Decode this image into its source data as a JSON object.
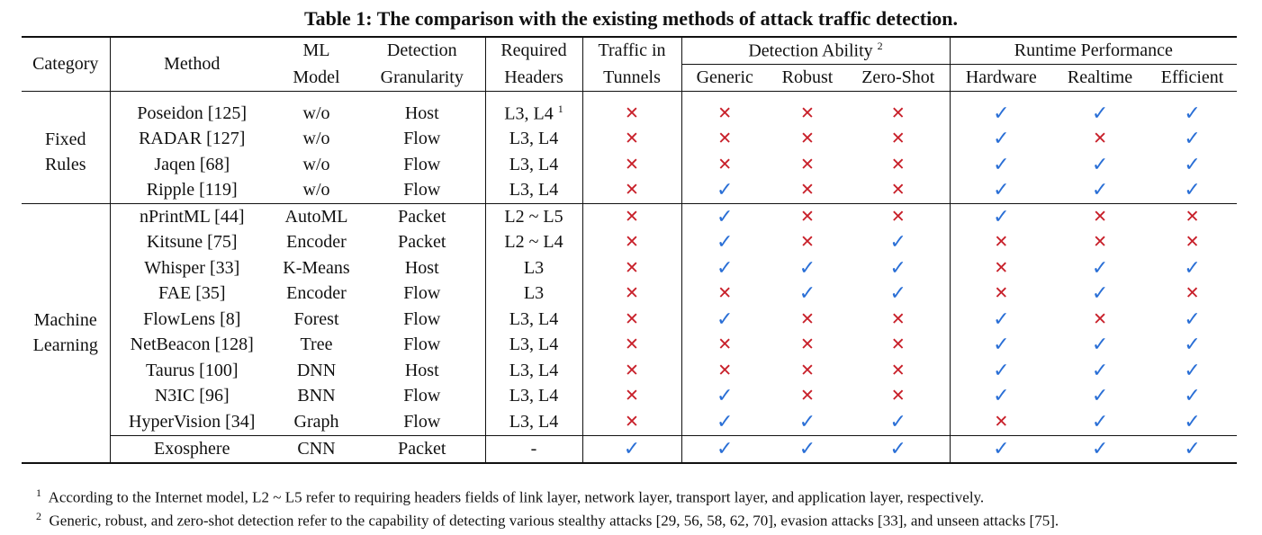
{
  "caption": "Table 1: The comparison with the existing methods of attack traffic detection.",
  "headers": {
    "category": "Category",
    "method": "Method",
    "ml_model_1": "ML",
    "ml_model_2": "Model",
    "granularity_1": "Detection",
    "granularity_2": "Granularity",
    "required_1": "Required",
    "required_2": "Headers",
    "tunnels_1": "Traffic in",
    "tunnels_2": "Tunnels",
    "detection_ability": "Detection Ability",
    "detection_ability_sup": "2",
    "generic": "Generic",
    "robust": "Robust",
    "zero_shot": "Zero-Shot",
    "runtime_performance": "Runtime Performance",
    "hardware": "Hardware",
    "realtime": "Realtime",
    "efficient": "Efficient"
  },
  "categories": {
    "fixed_1": "Fixed",
    "fixed_2": "Rules",
    "ml_1": "Machine",
    "ml_2": "Learning"
  },
  "symbols": {
    "check": "✓",
    "cross": "✕"
  },
  "rows": [
    {
      "method": "Poseidon [125]",
      "model": "w/o",
      "gran": "Host",
      "headers": "L3, L4",
      "headers_sup": "1",
      "marks": [
        "x",
        "x",
        "x",
        "x",
        "c",
        "c",
        "c"
      ]
    },
    {
      "method": "RADAR [127]",
      "model": "w/o",
      "gran": "Flow",
      "headers": "L3, L4",
      "headers_sup": "",
      "marks": [
        "x",
        "x",
        "x",
        "x",
        "c",
        "x",
        "c"
      ]
    },
    {
      "method": "Jaqen [68]",
      "model": "w/o",
      "gran": "Flow",
      "headers": "L3, L4",
      "headers_sup": "",
      "marks": [
        "x",
        "x",
        "x",
        "x",
        "c",
        "c",
        "c"
      ]
    },
    {
      "method": "Ripple [119]",
      "model": "w/o",
      "gran": "Flow",
      "headers": "L3, L4",
      "headers_sup": "",
      "marks": [
        "x",
        "c",
        "x",
        "x",
        "c",
        "c",
        "c"
      ]
    },
    {
      "method": "nPrintML [44]",
      "model": "AutoML",
      "gran": "Packet",
      "headers": "L2 ~ L5",
      "headers_sup": "",
      "marks": [
        "x",
        "c",
        "x",
        "x",
        "c",
        "x",
        "x"
      ]
    },
    {
      "method": "Kitsune [75]",
      "model": "Encoder",
      "gran": "Packet",
      "headers": "L2 ~ L4",
      "headers_sup": "",
      "marks": [
        "x",
        "c",
        "x",
        "c",
        "x",
        "x",
        "x"
      ]
    },
    {
      "method": "Whisper [33]",
      "model": "K-Means",
      "gran": "Host",
      "headers": "L3",
      "headers_sup": "",
      "marks": [
        "x",
        "c",
        "c",
        "c",
        "x",
        "c",
        "c"
      ]
    },
    {
      "method": "FAE [35]",
      "model": "Encoder",
      "gran": "Flow",
      "headers": "L3",
      "headers_sup": "",
      "marks": [
        "x",
        "x",
        "c",
        "c",
        "x",
        "c",
        "x"
      ]
    },
    {
      "method": "FlowLens [8]",
      "model": "Forest",
      "gran": "Flow",
      "headers": "L3, L4",
      "headers_sup": "",
      "marks": [
        "x",
        "c",
        "x",
        "x",
        "c",
        "x",
        "c"
      ]
    },
    {
      "method": "NetBeacon [128]",
      "model": "Tree",
      "gran": "Flow",
      "headers": "L3, L4",
      "headers_sup": "",
      "marks": [
        "x",
        "x",
        "x",
        "x",
        "c",
        "c",
        "c"
      ]
    },
    {
      "method": "Taurus [100]",
      "model": "DNN",
      "gran": "Host",
      "headers": "L3, L4",
      "headers_sup": "",
      "marks": [
        "x",
        "x",
        "x",
        "x",
        "c",
        "c",
        "c"
      ]
    },
    {
      "method": "N3IC [96]",
      "model": "BNN",
      "gran": "Flow",
      "headers": "L3, L4",
      "headers_sup": "",
      "marks": [
        "x",
        "c",
        "x",
        "x",
        "c",
        "c",
        "c"
      ]
    },
    {
      "method": "HyperVision [34]",
      "model": "Graph",
      "gran": "Flow",
      "headers": "L3, L4",
      "headers_sup": "",
      "marks": [
        "x",
        "c",
        "c",
        "c",
        "x",
        "c",
        "c"
      ]
    },
    {
      "method": "Exosphere",
      "model": "CNN",
      "gran": "Packet",
      "headers": "-",
      "headers_sup": "",
      "marks": [
        "c",
        "c",
        "c",
        "c",
        "c",
        "c",
        "c"
      ]
    }
  ],
  "footnotes": [
    {
      "num": "1",
      "text": "According to the Internet model, L2 ~ L5 refer to requiring headers fields of link layer, network layer, transport layer, and application layer, respectively."
    },
    {
      "num": "2",
      "text": "Generic, robust, and zero-shot detection refer to the capability of detecting various stealthy attacks [29, 56, 58, 62, 70], evasion attacks [33], and unseen attacks [75]."
    }
  ]
}
